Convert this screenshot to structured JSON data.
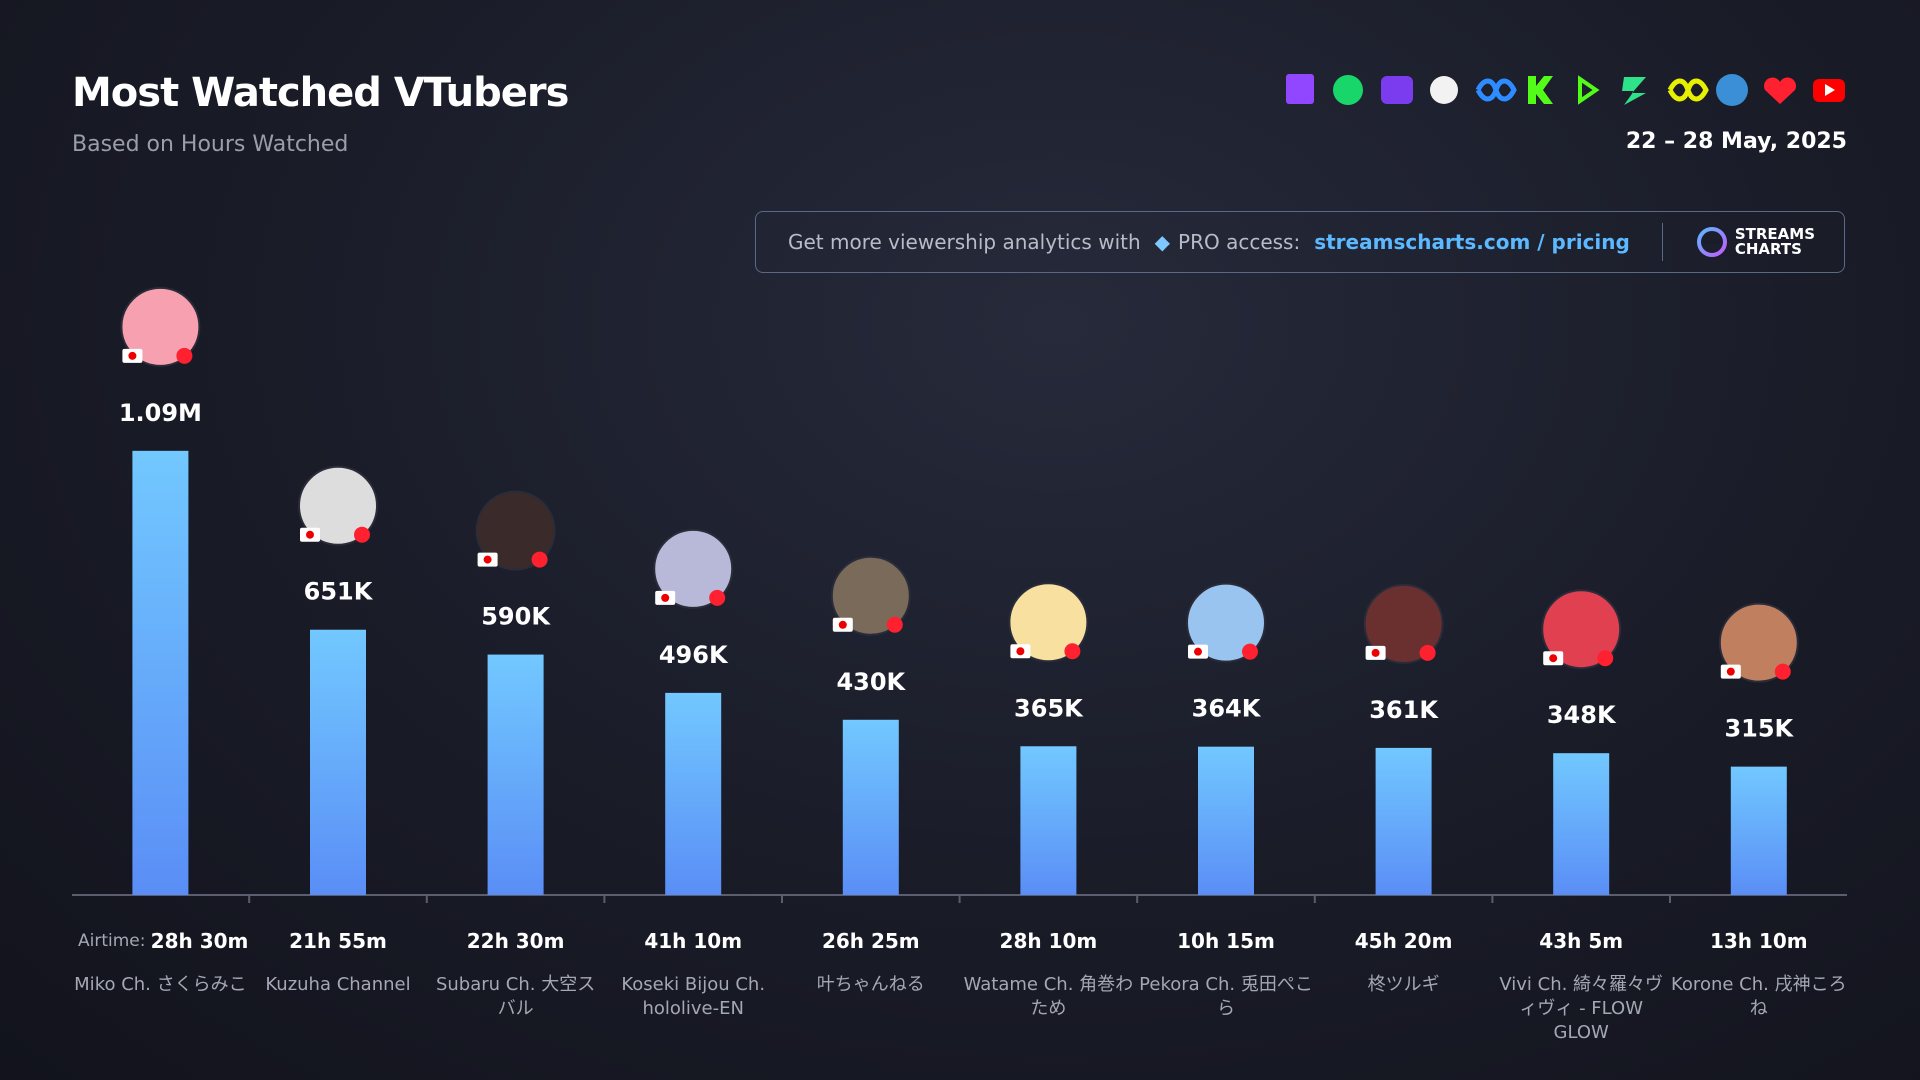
{
  "header": {
    "title": "Most Watched VTubers",
    "subtitle": "Based on Hours Watched",
    "date": "22 – 28 May, 2025"
  },
  "promo": {
    "text": "Get more viewership analytics with",
    "pro": "PRO access:",
    "link": "streamscharts.com / pricing",
    "logo": [
      "STREAMS",
      "CHARTS"
    ]
  },
  "chart_data": {
    "type": "bar",
    "categories": [
      "Miko Ch. さくらみこ",
      "Kuzuha Channel",
      "Subaru Ch. 大空スバル",
      "Koseki Bijou Ch. hololive-EN",
      "叶ちゃんねる",
      "Watame Ch. 角巻わため",
      "Pekora Ch. 兎田ぺこら",
      "柊ツルギ",
      "Vivi Ch. 綺々羅々ヴィヴィ - FLOW GLOW",
      "Korone Ch. 戌神ころね"
    ],
    "values": [
      1090000,
      651000,
      590000,
      496000,
      430000,
      365000,
      364000,
      361000,
      348000,
      315000
    ],
    "value_labels": [
      "1.09M",
      "651K",
      "590K",
      "496K",
      "430K",
      "365K",
      "364K",
      "361K",
      "348K",
      "315K"
    ],
    "airtime_label": "Airtime:",
    "airtime": [
      "28h 30m",
      "21h 55m",
      "22h 30m",
      "41h 10m",
      "26h 25m",
      "28h 10m",
      "10h 15m",
      "45h 20m",
      "43h 5m",
      "13h 10m"
    ],
    "gradient": [
      "#72c8ff",
      "#5a8ef6"
    ],
    "ylim": [
      0,
      1200000
    ]
  }
}
